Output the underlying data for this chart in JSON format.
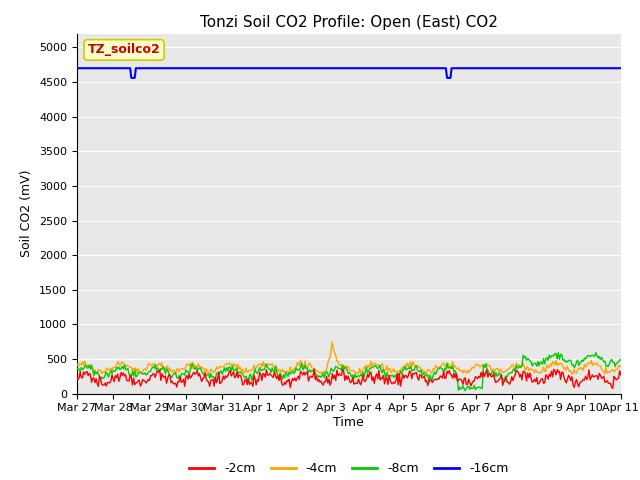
{
  "title": "Tonzi Soil CO2 Profile: Open (East) CO2",
  "ylabel": "Soil CO2 (mV)",
  "xlabel": "Time",
  "ylim": [
    0,
    5200
  ],
  "yticks": [
    0,
    500,
    1000,
    1500,
    2000,
    2500,
    3000,
    3500,
    4000,
    4500,
    5000
  ],
  "xtick_labels": [
    "Mar 27",
    "Mar 28",
    "Mar 29",
    "Mar 30",
    "Mar 31",
    "Apr 1",
    "Apr 2",
    "Apr 3",
    "Apr 4",
    "Apr 5",
    "Apr 6",
    "Apr 7",
    "Apr 8",
    "Apr 9",
    "Apr 10",
    "Apr 11"
  ],
  "colors": {
    "2cm": "#ff0000",
    "4cm": "#ffa500",
    "8cm": "#00cc00",
    "16cm": "#0000ff"
  },
  "legend_labels": [
    "-2cm",
    "-4cm",
    "-8cm",
    "-16cm"
  ],
  "annotation_label": "TZ_soilco2",
  "annotation_color": "#cc0000",
  "annotation_bg": "#ffffcc",
  "annotation_edge": "#cccc00",
  "bg_color": "#e8e8e8",
  "title_fontsize": 11,
  "axis_fontsize": 9,
  "tick_fontsize": 8,
  "legend_fontsize": 9,
  "n_points": 480,
  "n_days": 15,
  "blue_value": 4700,
  "blue_dip1_day": 1.5,
  "blue_dip2_day": 10.2,
  "blue_dip_val": 4560
}
